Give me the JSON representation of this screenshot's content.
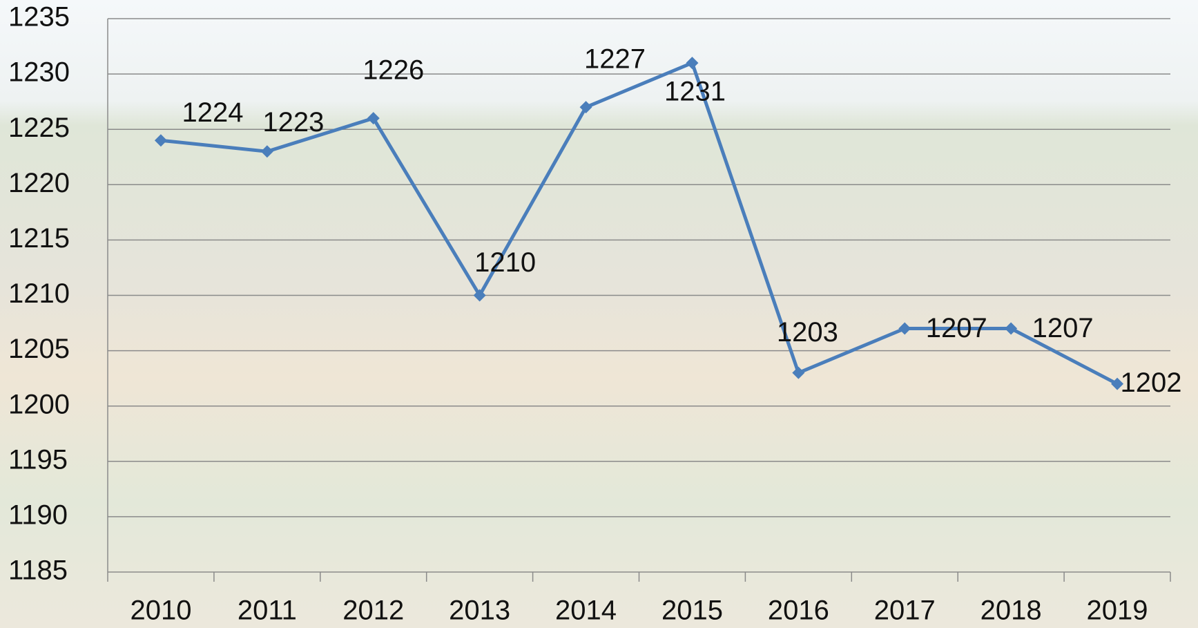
{
  "chart_data": {
    "type": "line",
    "categories": [
      "2010",
      "2011",
      "2012",
      "2013",
      "2014",
      "2015",
      "2016",
      "2017",
      "2018",
      "2019"
    ],
    "values": [
      1224,
      1223,
      1226,
      1210,
      1227,
      1231,
      1203,
      1207,
      1207,
      1202
    ],
    "color": "#4a7ebb",
    "ylim": [
      1185,
      1235
    ],
    "yticks": [
      1185,
      1190,
      1195,
      1200,
      1205,
      1210,
      1215,
      1220,
      1225,
      1230,
      1235
    ],
    "grid": true
  }
}
